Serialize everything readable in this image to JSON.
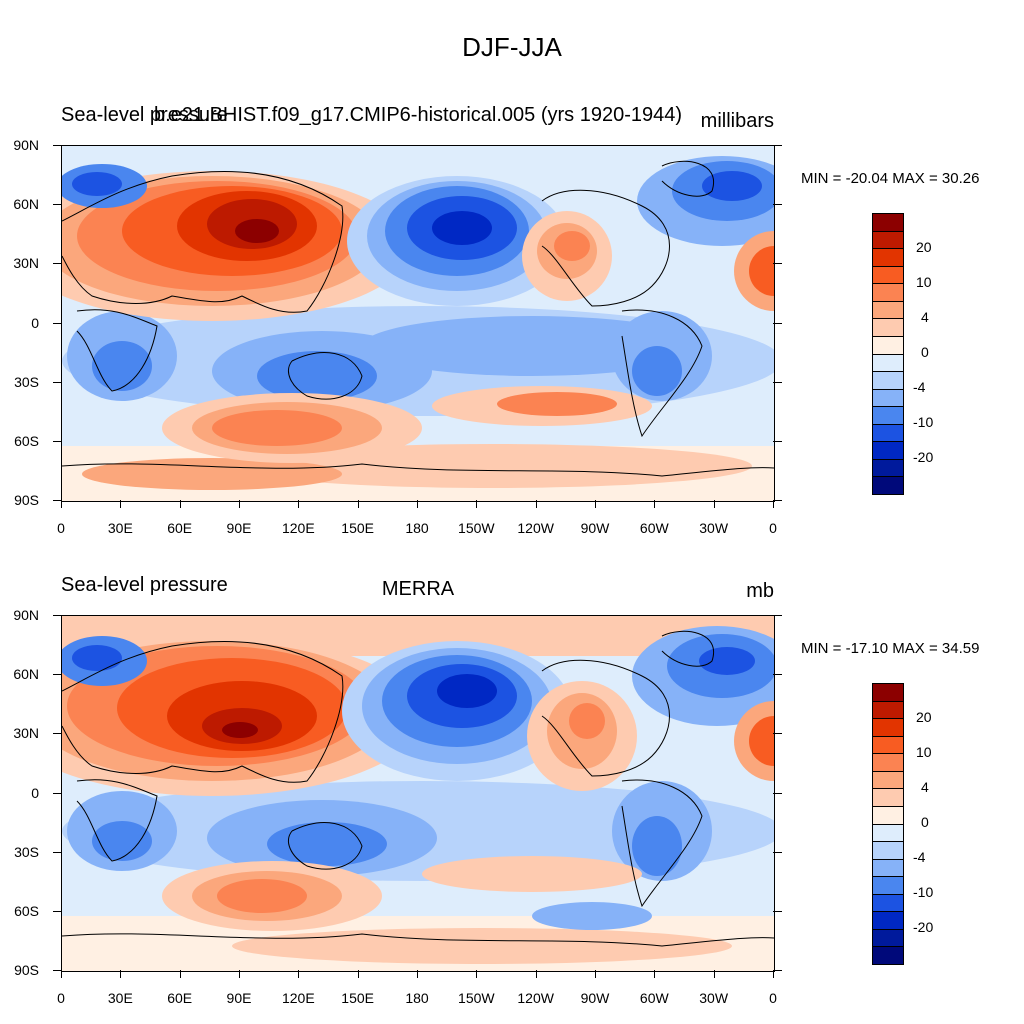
{
  "figure": {
    "title": "DJF-JJA"
  },
  "colors": [
    "#8c0000",
    "#bd1a00",
    "#e23400",
    "#f85c22",
    "#fb8352",
    "#fba77c",
    "#fecbb0",
    "#fff0e3",
    "#deedfc",
    "#b7d3fb",
    "#86b2f8",
    "#4a86ef",
    "#1c53e2",
    "#0028c4",
    "#001a9c",
    "#00097a"
  ],
  "colorbar": {
    "labels": [
      "20",
      "10",
      "4",
      "0",
      "-4",
      "-10",
      "-20"
    ]
  },
  "x_ticks": [
    "0",
    "30E",
    "60E",
    "90E",
    "120E",
    "150E",
    "180",
    "150W",
    "120W",
    "90W",
    "60W",
    "30W",
    "0"
  ],
  "y_ticks": [
    "90N",
    "60N",
    "30N",
    "0",
    "30S",
    "60S",
    "90S"
  ],
  "panels": [
    {
      "left_title": "Sea-level pressure",
      "center_title": "b.e21.BHIST.f09_g17.CMIP6-historical.005 (yrs 1920-1944)",
      "right_title": "millibars",
      "min_max": "MIN = -20.04 MAX =  30.26"
    },
    {
      "left_title": "Sea-level pressure",
      "center_title": "MERRA",
      "right_title": "mb",
      "min_max": "MIN = -17.10 MAX =  34.59"
    }
  ],
  "chart_data": [
    {
      "type": "heatmap",
      "title": "DJF-JJA",
      "subtitle": "b.e21.BHIST.f09_g17.CMIP6-historical.005 (yrs 1920-1944)",
      "variable": "Sea-level pressure",
      "units": "millibars",
      "x_axis": {
        "ticks": [
          "0",
          "30E",
          "60E",
          "90E",
          "120E",
          "150E",
          "180",
          "150W",
          "120W",
          "90W",
          "60W",
          "30W",
          "0"
        ]
      },
      "y_axis": {
        "ticks": [
          "90N",
          "60N",
          "30N",
          "0",
          "30S",
          "60S",
          "90S"
        ]
      },
      "colorbar_labels": [
        20,
        10,
        4,
        0,
        -4,
        -10,
        -20
      ],
      "min": -20.04,
      "max": 30.26
    },
    {
      "type": "heatmap",
      "title": "DJF-JJA",
      "subtitle": "MERRA",
      "variable": "Sea-level pressure",
      "units": "mb",
      "x_axis": {
        "ticks": [
          "0",
          "30E",
          "60E",
          "90E",
          "120E",
          "150E",
          "180",
          "150W",
          "120W",
          "90W",
          "60W",
          "30W",
          "0"
        ]
      },
      "y_axis": {
        "ticks": [
          "90N",
          "60N",
          "30N",
          "0",
          "30S",
          "60S",
          "90S"
        ]
      },
      "colorbar_labels": [
        20,
        10,
        4,
        0,
        -4,
        -10,
        -20
      ],
      "min": -17.1,
      "max": 34.59
    }
  ]
}
